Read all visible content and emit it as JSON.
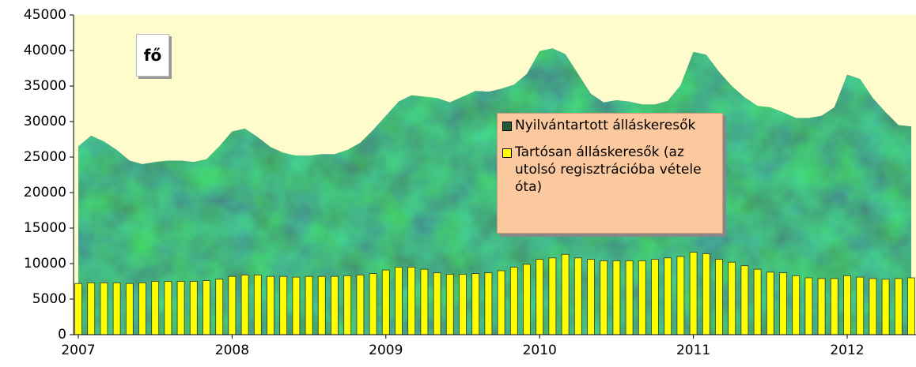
{
  "chart_data": {
    "type": "combo",
    "unit_label": "fő",
    "categories": [
      "2007",
      null,
      null,
      null,
      null,
      null,
      null,
      null,
      null,
      null,
      null,
      null,
      "2008",
      null,
      null,
      null,
      null,
      null,
      null,
      null,
      null,
      null,
      null,
      null,
      "2009",
      null,
      null,
      null,
      null,
      null,
      null,
      null,
      null,
      null,
      null,
      null,
      "2010",
      null,
      null,
      null,
      null,
      null,
      null,
      null,
      null,
      null,
      null,
      null,
      "2011",
      null,
      null,
      null,
      null,
      null,
      null,
      null,
      null,
      null,
      null,
      null,
      "2012",
      null,
      null,
      null,
      null,
      null
    ],
    "series": [
      {
        "name": "Nyilvántartott álláskeresők",
        "type": "area",
        "color": "#1f5c36",
        "values": [
          26500,
          28000,
          27200,
          26000,
          24500,
          24000,
          24300,
          24500,
          24500,
          24300,
          24700,
          26500,
          28600,
          29000,
          27800,
          26400,
          25600,
          25200,
          25200,
          25400,
          25400,
          26000,
          27000,
          28800,
          30800,
          32800,
          33700,
          33500,
          33300,
          32700,
          33500,
          34300,
          34200,
          34600,
          35200,
          36700,
          39900,
          40300,
          39500,
          36700,
          33900,
          32700,
          33000,
          32800,
          32400,
          32400,
          32900,
          35100,
          39800,
          39400,
          37000,
          35000,
          33400,
          32200,
          32000,
          31300,
          30500,
          30500,
          30800,
          32000,
          36600,
          36000,
          33300,
          31300,
          29500,
          29300
        ]
      },
      {
        "name": "Tartósan álláskeresők (az utolsó regisztrációba vétele óta)",
        "type": "bar",
        "color": "#ffff00",
        "values": [
          7200,
          7300,
          7300,
          7300,
          7200,
          7300,
          7500,
          7500,
          7500,
          7500,
          7600,
          7800,
          8200,
          8400,
          8400,
          8200,
          8200,
          8100,
          8200,
          8200,
          8200,
          8300,
          8400,
          8600,
          9100,
          9500,
          9500,
          9200,
          8700,
          8500,
          8500,
          8600,
          8700,
          9000,
          9500,
          9900,
          10600,
          10800,
          11300,
          10800,
          10600,
          10400,
          10400,
          10400,
          10400,
          10600,
          10800,
          11000,
          11600,
          11400,
          10600,
          10200,
          9700,
          9200,
          8800,
          8700,
          8300,
          8000,
          7900,
          7900,
          8300,
          8100,
          7900,
          7800,
          7900,
          8000
        ]
      }
    ],
    "ylim": [
      0,
      45000
    ],
    "yticks": [
      0,
      5000,
      10000,
      15000,
      20000,
      25000,
      30000,
      35000,
      40000,
      45000
    ]
  }
}
